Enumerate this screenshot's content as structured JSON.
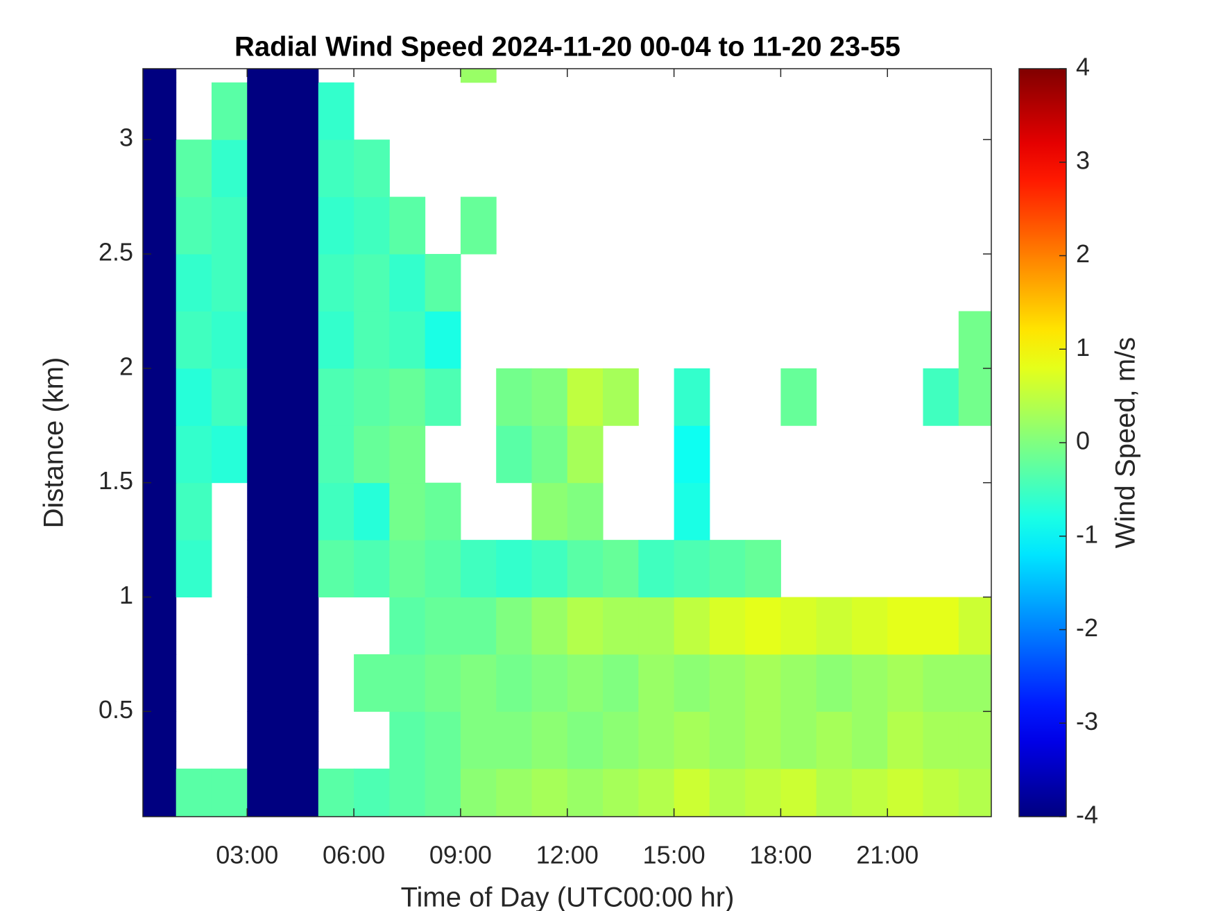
{
  "chart_data": {
    "type": "heatmap",
    "title": "Radial Wind Speed 2024-11-20 00-04 to 11-20 23-55",
    "x_label": "Time of Day (UTC00:00 hr)",
    "y_label": "Distance (km)",
    "colorbar_label": "Wind Speed, m/s",
    "colormap": "jet",
    "xlim": [
      0.07,
      23.92
    ],
    "ylim": [
      0.04,
      3.31
    ],
    "clim": [
      -4,
      4
    ],
    "xticks": [
      {
        "value": 3,
        "label": "03:00"
      },
      {
        "value": 6,
        "label": "06:00"
      },
      {
        "value": 9,
        "label": "09:00"
      },
      {
        "value": 12,
        "label": "12:00"
      },
      {
        "value": 15,
        "label": "15:00"
      },
      {
        "value": 18,
        "label": "18:00"
      },
      {
        "value": 21,
        "label": "21:00"
      }
    ],
    "yticks": [
      0.5,
      1,
      1.5,
      2,
      2.5,
      3
    ],
    "cticks": [
      -4,
      -3,
      -2,
      -1,
      0,
      1,
      2,
      3,
      4
    ],
    "x": [
      0.5,
      1.5,
      2.5,
      3.5,
      4.5,
      5.5,
      6.5,
      7.5,
      8.5,
      9.5,
      10.5,
      11.5,
      12.5,
      13.5,
      14.5,
      15.5,
      16.5,
      17.5,
      18.5,
      19.5,
      20.5,
      21.5,
      22.5,
      23.5
    ],
    "y": [
      0.125,
      0.375,
      0.625,
      0.875,
      1.125,
      1.375,
      1.625,
      1.875,
      2.125,
      2.375,
      2.625,
      2.875,
      3.125,
      3.375
    ],
    "z": [
      [
        -4,
        -0.3,
        -0.3,
        -4,
        -4,
        -0.3,
        -0.4,
        -0.3,
        -0.2,
        0.1,
        0.2,
        0.3,
        0.2,
        0.3,
        0.4,
        0.6,
        0.4,
        0.5,
        0.6,
        0.4,
        0.5,
        0.6,
        0.5,
        0.4
      ],
      [
        -4,
        null,
        null,
        -4,
        -4,
        null,
        null,
        -0.3,
        -0.2,
        0,
        0,
        0.1,
        0,
        0.1,
        0.2,
        0.3,
        0.2,
        0.3,
        0.2,
        0.3,
        0.2,
        0.4,
        0.3,
        0.3
      ],
      [
        -4,
        null,
        null,
        -4,
        -4,
        null,
        -0.2,
        -0.2,
        -0.1,
        0,
        -0.1,
        0,
        0.1,
        0,
        0.2,
        0.1,
        0.2,
        0.3,
        0.2,
        0.1,
        0.2,
        0.3,
        0.2,
        0.2
      ],
      [
        -4,
        null,
        null,
        -4,
        -4,
        null,
        null,
        -0.3,
        -0.2,
        -0.2,
        0,
        0.2,
        0.4,
        0.3,
        0.3,
        0.5,
        0.7,
        0.8,
        0.7,
        0.6,
        0.7,
        0.8,
        0.8,
        0.6
      ],
      [
        -4,
        -0.6,
        null,
        -4,
        -4,
        -0.3,
        -0.4,
        -0.2,
        -0.3,
        -0.5,
        -0.6,
        -0.5,
        -0.3,
        -0.2,
        -0.5,
        -0.4,
        -0.3,
        -0.2,
        null,
        null,
        null,
        null,
        null,
        null
      ],
      [
        -4,
        -0.5,
        null,
        -4,
        -4,
        -0.5,
        -0.7,
        -0.1,
        -0.2,
        null,
        null,
        0.1,
        0,
        null,
        null,
        -0.8,
        null,
        null,
        null,
        null,
        null,
        null,
        null,
        null
      ],
      [
        -4,
        -0.6,
        -0.7,
        -4,
        -4,
        -0.4,
        -0.2,
        -0.1,
        null,
        null,
        -0.3,
        -0.1,
        0.3,
        null,
        null,
        -0.9,
        null,
        null,
        null,
        null,
        null,
        null,
        null,
        null
      ],
      [
        -4,
        -0.7,
        -0.5,
        -4,
        -4,
        -0.4,
        -0.3,
        -0.2,
        -0.4,
        null,
        -0.1,
        0,
        0.5,
        0.3,
        null,
        -0.6,
        null,
        null,
        -0.2,
        null,
        null,
        null,
        -0.5,
        -0.1
      ],
      [
        -4,
        -0.5,
        -0.6,
        -4,
        -4,
        -0.6,
        -0.4,
        -0.5,
        -0.8,
        null,
        null,
        null,
        null,
        null,
        null,
        null,
        null,
        null,
        null,
        null,
        null,
        null,
        null,
        -0.1
      ],
      [
        -4,
        -0.6,
        -0.5,
        -4,
        -4,
        -0.5,
        -0.4,
        -0.6,
        -0.3,
        null,
        null,
        null,
        null,
        null,
        null,
        null,
        null,
        null,
        null,
        null,
        null,
        null,
        null,
        null
      ],
      [
        -4,
        -0.4,
        -0.5,
        -4,
        -4,
        -0.6,
        -0.5,
        -0.3,
        null,
        -0.2,
        null,
        null,
        null,
        null,
        null,
        null,
        null,
        null,
        null,
        null,
        null,
        null,
        null,
        null
      ],
      [
        -4,
        -0.3,
        -0.6,
        -4,
        -4,
        -0.5,
        -0.4,
        null,
        null,
        null,
        null,
        null,
        null,
        null,
        null,
        null,
        null,
        null,
        null,
        null,
        null,
        null,
        null,
        null
      ],
      [
        -4,
        null,
        -0.3,
        -4,
        -4,
        -0.6,
        null,
        null,
        null,
        null,
        null,
        null,
        null,
        null,
        null,
        null,
        null,
        null,
        null,
        null,
        null,
        null,
        null,
        null
      ],
      [
        -4,
        null,
        null,
        -4,
        -4,
        null,
        null,
        null,
        null,
        0.2,
        null,
        null,
        null,
        null,
        null,
        null,
        null,
        null,
        null,
        null,
        null,
        null,
        null,
        null
      ]
    ]
  }
}
